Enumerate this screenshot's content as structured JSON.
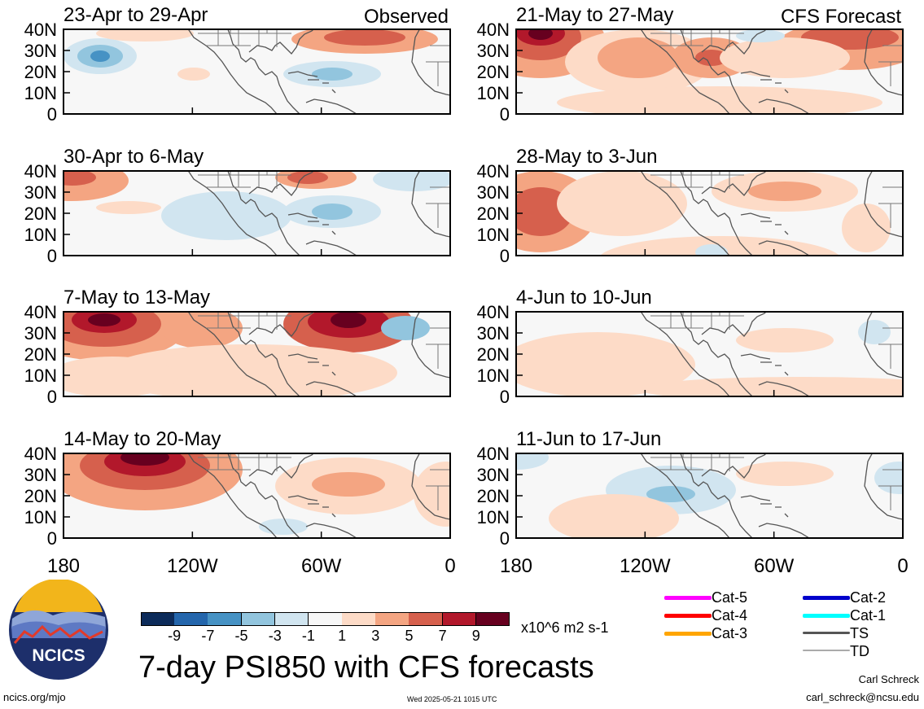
{
  "panels": [
    {
      "title": "23-Apr to 29-Apr",
      "tag": "Observed"
    },
    {
      "title": "30-Apr to 6-May",
      "tag": ""
    },
    {
      "title": "7-May to 13-May",
      "tag": ""
    },
    {
      "title": "14-May to 20-May",
      "tag": ""
    },
    {
      "title": "21-May to 27-May",
      "tag": "CFS Forecast"
    },
    {
      "title": "28-May to 3-Jun",
      "tag": ""
    },
    {
      "title": "4-Jun to 10-Jun",
      "tag": ""
    },
    {
      "title": "11-Jun to 17-Jun",
      "tag": ""
    }
  ],
  "lat_labels": [
    "40N",
    "30N",
    "20N",
    "10N",
    "0"
  ],
  "lon_labels": [
    "180",
    "120W",
    "60W",
    "0"
  ],
  "colorbar": {
    "ticks": [
      "-9",
      "-7",
      "-5",
      "-3",
      "-1",
      "1",
      "3",
      "5",
      "7",
      "9"
    ],
    "colors": [
      "#0c2b5a",
      "#2466ac",
      "#4692c4",
      "#92c5de",
      "#d1e5f0",
      "#f7f7f7",
      "#fddbc7",
      "#f4a582",
      "#d6604d",
      "#b2182b",
      "#67001f"
    ],
    "units": "x10^6 m2 s-1"
  },
  "legend": [
    {
      "label": "Cat-5",
      "color": "#ff00ff"
    },
    {
      "label": "Cat-4",
      "color": "#ff0000"
    },
    {
      "label": "Cat-3",
      "color": "#ffa500"
    },
    {
      "label": "Cat-2",
      "color": "#0000cc"
    },
    {
      "label": "Cat-1",
      "color": "#00ffff"
    },
    {
      "label": "TS",
      "color": "#555555"
    },
    {
      "label": "TD",
      "color": "#aaaaaa"
    }
  ],
  "logo_text": "NCICS",
  "main_title": "7-day PSI850 with CFS forecasts",
  "footer": {
    "website": "ncics.org/mjo",
    "timestamp": "Wed 2025-05-21 1015 UTC",
    "author": "Carl Schreck",
    "email": "carl_schreck@ncsu.edu"
  }
}
